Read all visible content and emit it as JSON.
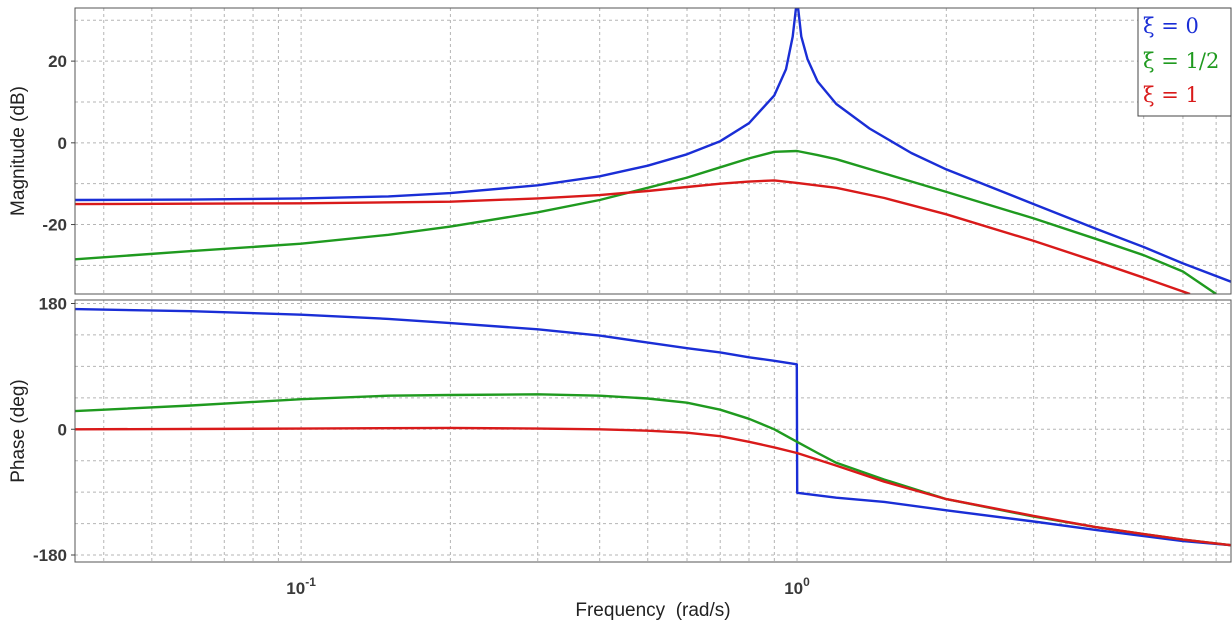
{
  "chart_data": [
    {
      "type": "line",
      "xlabel": "Frequency  (rad/s)",
      "ylabel": "Magnitude (dB)",
      "xscale": "log",
      "xlim": [
        0.035,
        7.5
      ],
      "ylim": [
        -37,
        33
      ],
      "x_ticks": [
        {
          "value": 0.1,
          "base": "10",
          "exp": "-1"
        },
        {
          "value": 1,
          "base": "10",
          "exp": "0"
        }
      ],
      "y_ticks": [
        {
          "value": 20,
          "label": "20"
        },
        {
          "value": 0,
          "label": "0"
        },
        {
          "value": -20,
          "label": "-20"
        }
      ],
      "grid": true,
      "legend": {
        "placement": "top-right",
        "entries": [
          {
            "label": "ξ = 0",
            "color": "#1a2ed6"
          },
          {
            "label": "ξ = 1/2",
            "color": "#1f9a1f"
          },
          {
            "label": "ξ = 1",
            "color": "#d91a1a"
          }
        ]
      },
      "series": [
        {
          "color": "#1a2ed6",
          "x": [
            0.035,
            0.06,
            0.1,
            0.15,
            0.2,
            0.3,
            0.4,
            0.5,
            0.6,
            0.7,
            0.8,
            0.9,
            0.95,
            0.98,
            0.995,
            1.005,
            1.02,
            1.05,
            1.1,
            1.2,
            1.4,
            1.7,
            2,
            3,
            4,
            5,
            6,
            7.5
          ],
          "y": [
            -14,
            -13.9,
            -13.6,
            -13.1,
            -12.3,
            -10.4,
            -8.2,
            -5.6,
            -2.8,
            0.4,
            4.8,
            11.6,
            18,
            26,
            33,
            33,
            26,
            20.5,
            15,
            9.5,
            3.5,
            -2.5,
            -6.5,
            -15,
            -21,
            -25.5,
            -29.5,
            -34
          ]
        },
        {
          "color": "#1f9a1f",
          "x": [
            0.035,
            0.06,
            0.1,
            0.15,
            0.2,
            0.3,
            0.4,
            0.5,
            0.6,
            0.7,
            0.8,
            0.9,
            1,
            1.1,
            1.2,
            1.5,
            2,
            3,
            4,
            5,
            6,
            7
          ],
          "y": [
            -28.5,
            -26.5,
            -24.7,
            -22.5,
            -20.5,
            -17,
            -14,
            -11,
            -8.5,
            -6,
            -3.8,
            -2.2,
            -2,
            -3,
            -4,
            -7.5,
            -12,
            -18.5,
            -23.5,
            -27.5,
            -31.5,
            -37
          ]
        },
        {
          "color": "#d91a1a",
          "x": [
            0.035,
            0.1,
            0.2,
            0.3,
            0.4,
            0.5,
            0.6,
            0.7,
            0.8,
            0.9,
            1,
            1.2,
            1.5,
            2,
            3,
            4,
            5,
            6.2
          ],
          "y": [
            -15,
            -14.8,
            -14.4,
            -13.6,
            -12.8,
            -11.8,
            -10.8,
            -10,
            -9.5,
            -9.2,
            -9.8,
            -11,
            -13.5,
            -17.5,
            -24,
            -29,
            -33,
            -37
          ]
        }
      ]
    },
    {
      "type": "line",
      "xlabel": "Frequency  (rad/s)",
      "ylabel": "Phase (deg)",
      "xscale": "log",
      "xlim": [
        0.035,
        7.5
      ],
      "ylim": [
        -190,
        185
      ],
      "y_ticks": [
        {
          "value": 180,
          "label": "180"
        },
        {
          "value": 0,
          "label": "0"
        },
        {
          "value": -180,
          "label": "-180"
        }
      ],
      "grid": true,
      "series": [
        {
          "color": "#1a2ed6",
          "x": [
            0.035,
            0.06,
            0.1,
            0.15,
            0.2,
            0.3,
            0.4,
            0.5,
            0.6,
            0.7,
            0.8,
            0.9,
            0.999,
            1.001,
            1.2,
            1.5,
            2,
            3,
            4,
            5,
            6,
            7.5
          ],
          "y": [
            172,
            169,
            164,
            158,
            152,
            143,
            134,
            124,
            116,
            110,
            103,
            98,
            93,
            -91,
            -98,
            -104,
            -116,
            -132,
            -144,
            -153,
            -160,
            -166
          ]
        },
        {
          "color": "#1f9a1f",
          "x": [
            0.035,
            0.06,
            0.1,
            0.15,
            0.2,
            0.3,
            0.4,
            0.5,
            0.6,
            0.7,
            0.8,
            0.9,
            1,
            1.1,
            1.2,
            1.5,
            2,
            3,
            4,
            5,
            6,
            7.5
          ],
          "y": [
            26,
            34,
            43,
            48,
            49,
            50,
            48,
            44,
            38,
            28,
            15,
            0,
            -18,
            -34,
            -48,
            -72,
            -100,
            -125,
            -140,
            -150,
            -158,
            -166
          ]
        },
        {
          "color": "#d91a1a",
          "x": [
            0.035,
            0.1,
            0.2,
            0.3,
            0.4,
            0.5,
            0.6,
            0.7,
            0.8,
            0.9,
            1,
            1.2,
            1.5,
            2,
            3,
            4,
            5,
            6,
            7.5
          ],
          "y": [
            0,
            1,
            2,
            1,
            0,
            -2,
            -5,
            -10,
            -18,
            -26,
            -34,
            -52,
            -75,
            -100,
            -124,
            -140,
            -150,
            -158,
            -166
          ]
        }
      ]
    }
  ]
}
